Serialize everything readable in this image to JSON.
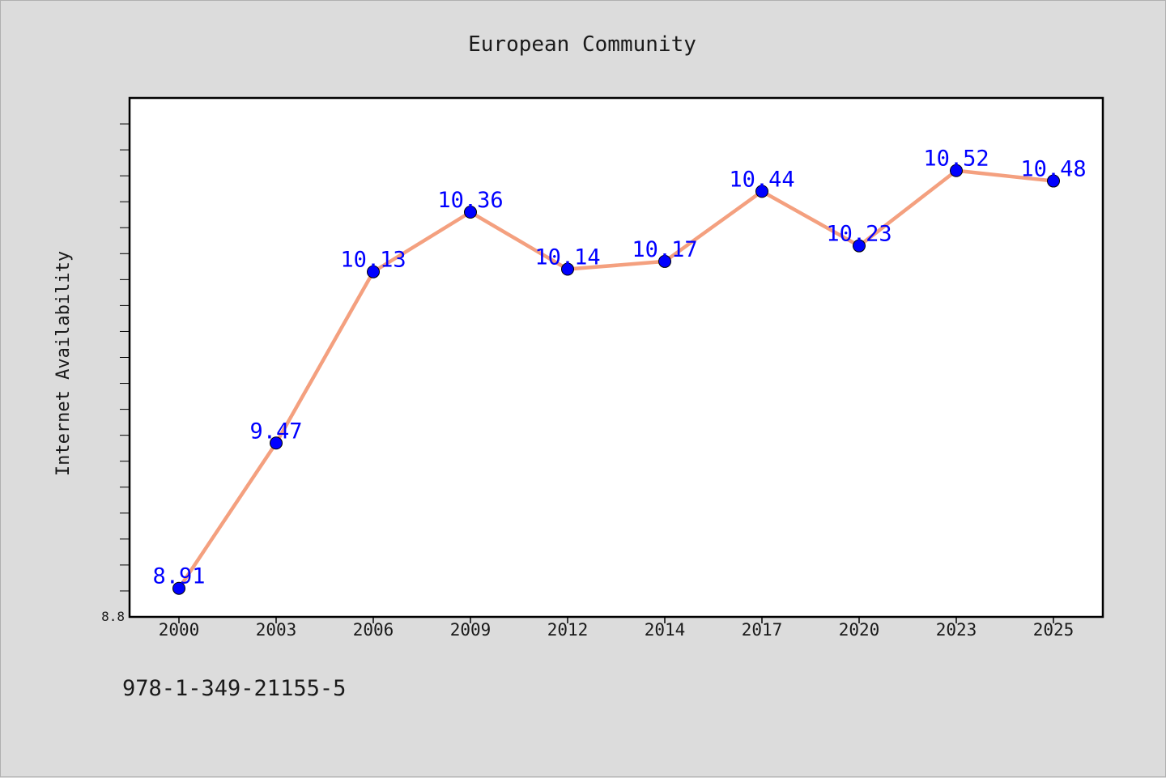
{
  "chart_data": {
    "type": "line",
    "title": "European Community",
    "xlabel": "",
    "ylabel": "Internet Availability",
    "categories": [
      "2000",
      "2003",
      "2006",
      "2009",
      "2012",
      "2014",
      "2017",
      "2020",
      "2023",
      "2025"
    ],
    "values": [
      8.91,
      9.47,
      10.13,
      10.36,
      10.14,
      10.17,
      10.44,
      10.23,
      10.52,
      10.48
    ],
    "data_labels": [
      "8.91",
      "9.47",
      "10.13",
      "10.36",
      "10.14",
      "10.17",
      "10.44",
      "10.23",
      "10.52",
      "10.48"
    ],
    "ylim": [
      8.8,
      10.8
    ],
    "y_tick_label": "8.8",
    "grid": false,
    "legend": "none",
    "colors": {
      "line": "#f4a07f",
      "marker": "#0000ff",
      "data_label": "#0000ff",
      "plot_background": "#ffffff",
      "page_background": "#dcdcdc"
    }
  },
  "footer_text": "978-1-349-21155-5"
}
